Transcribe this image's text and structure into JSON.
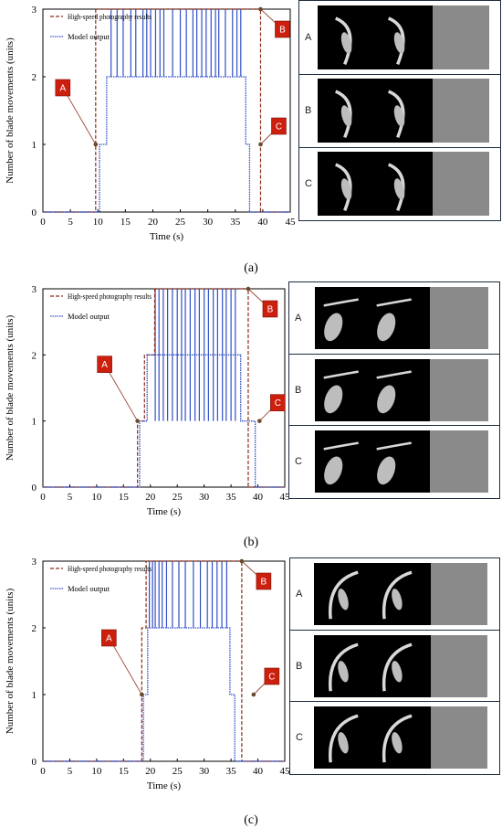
{
  "figure": {
    "captions": [
      "(a)",
      "(b)",
      "(c)"
    ],
    "thumb_row_labels": [
      "A",
      "B",
      "C"
    ]
  },
  "colors": {
    "photo_series": "#8b2a1a",
    "model_series": "#3050c8",
    "marker_fill": "#cc1f0e",
    "thumb_border": "#1f2b3f"
  },
  "chart_data": [
    {
      "type": "line",
      "panel": "(a)",
      "xlabel": "Time (s)",
      "ylabel": "Number of blade movements (units)",
      "xlim": [
        0,
        45
      ],
      "ylim": [
        0,
        3
      ],
      "xticks": [
        0,
        5,
        10,
        15,
        20,
        25,
        30,
        35,
        40,
        45
      ],
      "yticks": [
        0,
        1,
        2,
        3
      ],
      "legend_position": "top-left",
      "series": [
        {
          "name": "High-speed photography results",
          "style": "dashed",
          "x": [
            0,
            9.6,
            9.6,
            39.6,
            39.6,
            45
          ],
          "y": [
            0,
            0,
            3,
            3,
            0,
            0
          ]
        },
        {
          "name": "Model output",
          "style": "dotted",
          "x": [
            0,
            10.3,
            10.3,
            11.6,
            11.6,
            36.9,
            36.9,
            37.6,
            37.6,
            45
          ],
          "y": [
            0,
            0,
            1,
            1,
            2,
            2,
            1,
            1,
            0,
            0
          ],
          "spikes": [
            12.4,
            13.5,
            14.6,
            16.0,
            16.9,
            18.2,
            18.9,
            19.6,
            20.5,
            21.3,
            22.0,
            23.6,
            25.0,
            26.1,
            27.3,
            28.0,
            28.9,
            29.7,
            30.6,
            31.4,
            32.0,
            33.2,
            34.5,
            35.3,
            36.0
          ],
          "spike_range": [
            2,
            3
          ]
        }
      ],
      "annotations": [
        {
          "label": "A",
          "at": [
            9.6,
            1
          ]
        },
        {
          "label": "B",
          "at": [
            39.6,
            3
          ]
        },
        {
          "label": "C",
          "at": [
            39.6,
            1
          ]
        }
      ]
    },
    {
      "type": "line",
      "panel": "(b)",
      "xlabel": "Time (s)",
      "ylabel": "Number of blade movements (units)",
      "xlim": [
        0,
        45
      ],
      "ylim": [
        0,
        3
      ],
      "xticks": [
        0,
        5,
        10,
        15,
        20,
        25,
        30,
        35,
        40,
        45
      ],
      "yticks": [
        0,
        1,
        2,
        3
      ],
      "legend_position": "top-left",
      "series": [
        {
          "name": "High-speed photography results",
          "style": "dashed",
          "x": [
            0,
            17.6,
            17.6,
            18.9,
            18.9,
            20.8,
            20.8,
            38.2,
            38.2,
            45
          ],
          "y": [
            0,
            0,
            1,
            1,
            2,
            2,
            3,
            3,
            0,
            0
          ]
        },
        {
          "name": "Model output",
          "style": "dotted",
          "x": [
            0,
            18.0,
            18.0,
            19.4,
            19.4,
            36.8,
            36.8,
            39.5,
            39.5,
            45
          ],
          "y": [
            0,
            0,
            1,
            1,
            2,
            2,
            1,
            1,
            0,
            0
          ],
          "spikes": [
            20.9,
            21.6,
            22.4,
            23.2,
            24.1,
            25.0,
            25.8,
            26.5,
            27.4,
            28.3,
            29.1,
            30.0,
            30.8,
            31.7,
            32.5,
            33.4,
            34.1,
            35.0,
            35.8
          ],
          "spike_range": [
            1,
            3
          ]
        }
      ],
      "annotations": [
        {
          "label": "A",
          "at": [
            17.6,
            1
          ]
        },
        {
          "label": "B",
          "at": [
            38.2,
            3
          ]
        },
        {
          "label": "C",
          "at": [
            40.3,
            1
          ]
        }
      ]
    },
    {
      "type": "line",
      "panel": "(c)",
      "xlabel": "Time (s)",
      "ylabel": "Number of blade movements (units)",
      "xlim": [
        0,
        45
      ],
      "ylim": [
        0,
        3
      ],
      "xticks": [
        0,
        5,
        10,
        15,
        20,
        25,
        30,
        35,
        40,
        45
      ],
      "yticks": [
        0,
        1,
        2,
        3
      ],
      "legend_position": "top-left",
      "series": [
        {
          "name": "High-speed photography results",
          "style": "dashed",
          "x": [
            0,
            18.4,
            18.4,
            19.2,
            19.2,
            37.0,
            37.0,
            45
          ],
          "y": [
            0,
            0,
            2,
            2,
            3,
            3,
            0,
            0
          ]
        },
        {
          "name": "Model output",
          "style": "dotted",
          "x": [
            0,
            18.7,
            18.7,
            19.5,
            19.5,
            34.8,
            34.8,
            35.7,
            35.7,
            45
          ],
          "y": [
            0,
            0,
            1,
            1,
            2,
            2,
            1,
            1,
            0,
            0
          ],
          "spikes": [
            19.8,
            20.4,
            20.9,
            21.6,
            22.2,
            23.0,
            24.1,
            25.3,
            26.5,
            28.0,
            29.3,
            30.6,
            31.5,
            32.4,
            33.3,
            34.2
          ],
          "spike_range": [
            2,
            3
          ]
        }
      ],
      "annotations": [
        {
          "label": "A",
          "at": [
            18.4,
            1
          ]
        },
        {
          "label": "B",
          "at": [
            37.0,
            3
          ]
        },
        {
          "label": "C",
          "at": [
            39.2,
            1
          ]
        }
      ]
    }
  ]
}
